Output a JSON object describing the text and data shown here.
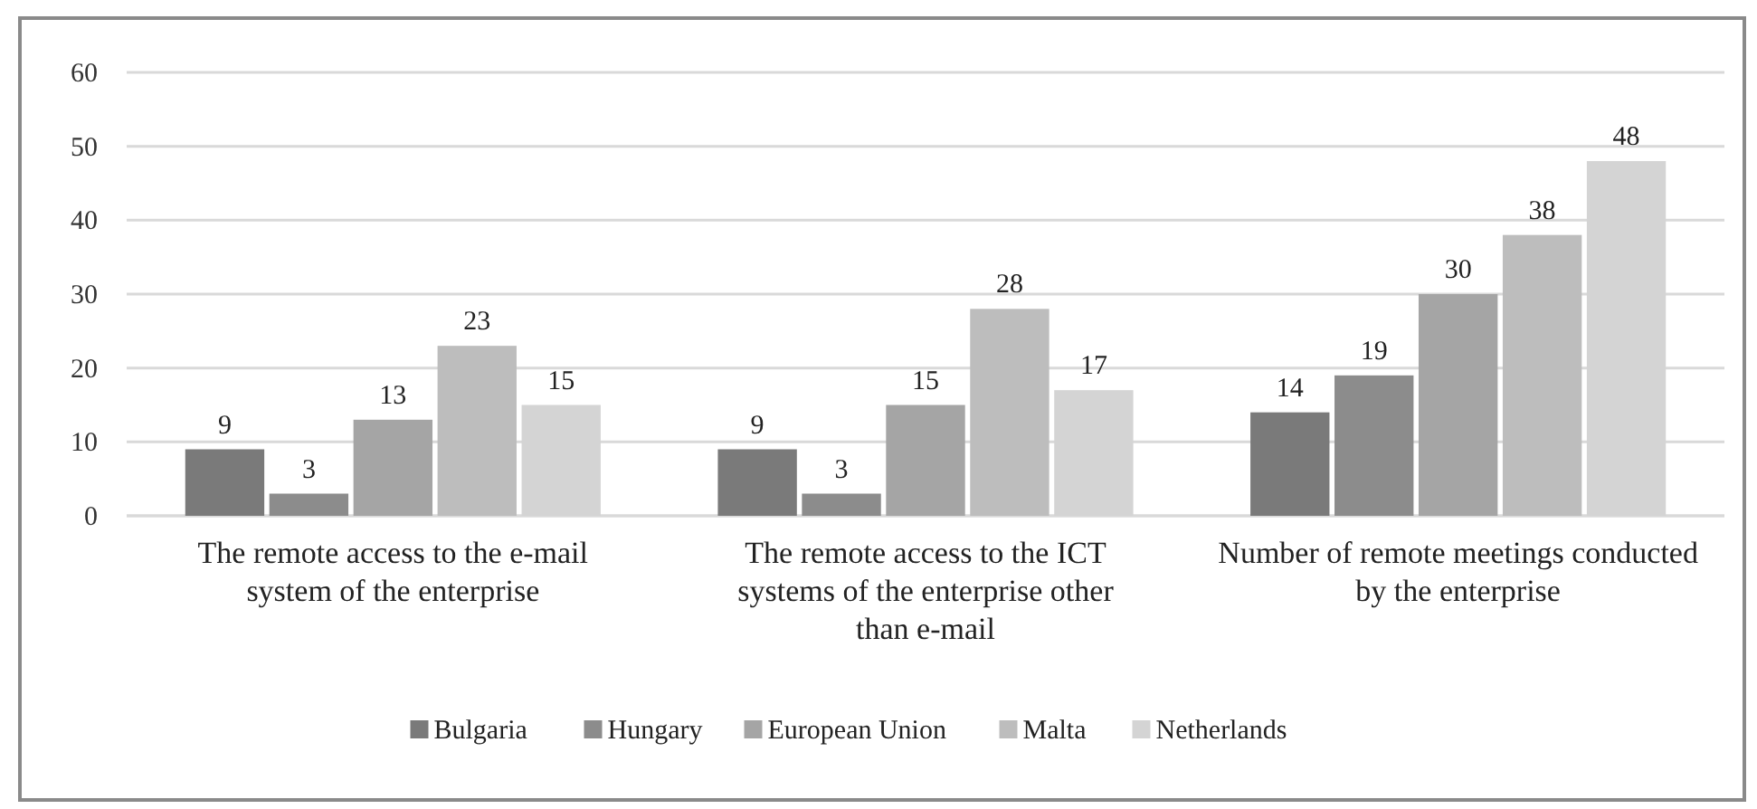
{
  "chart_data": {
    "type": "bar",
    "categories": [
      "The remote access to the e-mail system of the enterprise",
      "The remote access to the ICT systems of the enterprise other than e-mail",
      "Number of remote meetings conducted by the enterprise"
    ],
    "series": [
      {
        "name": "Bulgaria",
        "color": "#7a7a7a",
        "values": [
          9,
          9,
          14
        ]
      },
      {
        "name": "Hungary",
        "color": "#8c8c8c",
        "values": [
          3,
          3,
          19
        ]
      },
      {
        "name": "European Union",
        "color": "#a5a5a5",
        "values": [
          13,
          15,
          30
        ]
      },
      {
        "name": "Malta",
        "color": "#bdbdbd",
        "values": [
          23,
          28,
          38
        ]
      },
      {
        "name": "Netherlands",
        "color": "#d4d4d4",
        "values": [
          15,
          17,
          48
        ]
      }
    ],
    "ylim": [
      0,
      60
    ],
    "yticks": [
      0,
      10,
      20,
      30,
      40,
      50,
      60
    ],
    "grid": "y",
    "legend": "bottom",
    "data_labels": true
  }
}
